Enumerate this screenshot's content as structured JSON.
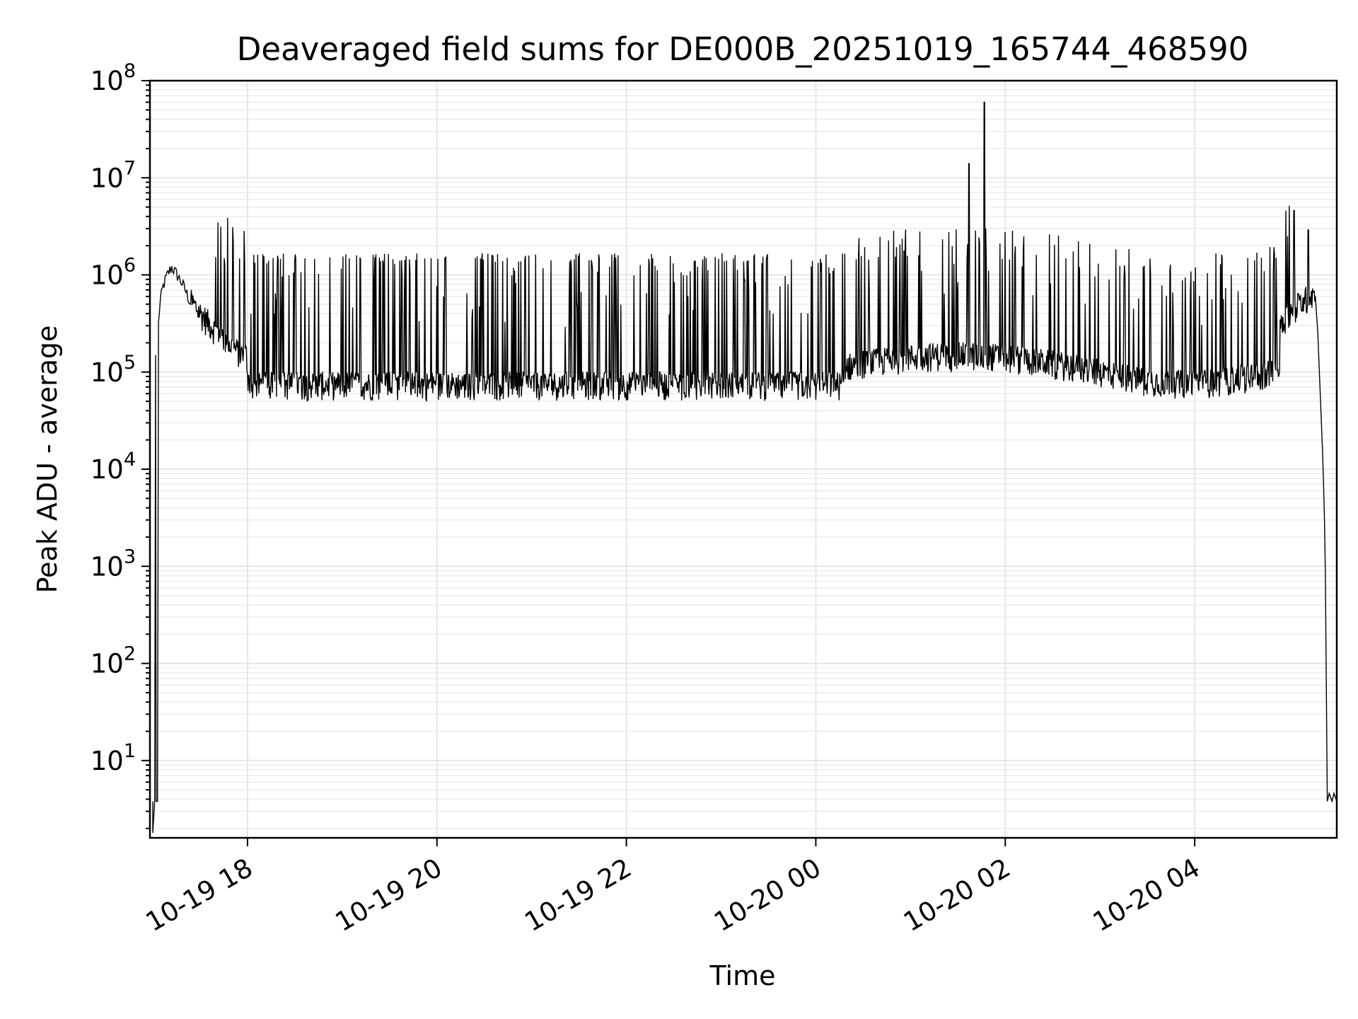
{
  "chart_data": {
    "type": "line",
    "title": "Deaveraged field sums for DE000B_20251019_165744_468590",
    "xlabel": "Time",
    "ylabel": "Peak ADU - average",
    "yscale": "log",
    "ylim": [
      1.6,
      100000000
    ],
    "xlim_hours_since_2025-10-19_00:00": [
      16.97,
      29.5
    ],
    "x_ticks": [
      {
        "label": "10-19 18",
        "hours": 18
      },
      {
        "label": "10-19 20",
        "hours": 20
      },
      {
        "label": "10-19 22",
        "hours": 22
      },
      {
        "label": "10-20 00",
        "hours": 24
      },
      {
        "label": "10-20 02",
        "hours": 26
      },
      {
        "label": "10-20 04",
        "hours": 28
      }
    ],
    "y_ticks": [
      {
        "base": "10",
        "exp": "1",
        "value": 10
      },
      {
        "base": "10",
        "exp": "2",
        "value": 100
      },
      {
        "base": "10",
        "exp": "3",
        "value": 1000
      },
      {
        "base": "10",
        "exp": "4",
        "value": 10000
      },
      {
        "base": "10",
        "exp": "5",
        "value": 100000
      },
      {
        "base": "10",
        "exp": "6",
        "value": 1000000
      },
      {
        "base": "10",
        "exp": "7",
        "value": 10000000
      },
      {
        "base": "10",
        "exp": "8",
        "value": 100000000
      }
    ],
    "grid": true,
    "series": [
      {
        "name": "Peak ADU - average",
        "color": "#000000",
        "description_of_shape": "baseline ~7e4 with frequent spikes to ~1.6e6 between 17:30 and 05:00",
        "key_points": [
          {
            "hours": 17.0,
            "value": 3.8
          },
          {
            "hours": 17.03,
            "value": 150000
          },
          {
            "hours": 17.1,
            "value": 500000
          },
          {
            "hours": 17.18,
            "value": 1200000
          },
          {
            "hours": 17.25,
            "value": 1000000
          },
          {
            "hours": 17.4,
            "value": 450000
          },
          {
            "hours": 17.7,
            "value": 150000
          },
          {
            "hours": 18.0,
            "value": 70000
          },
          {
            "hours": 24.0,
            "value": 90000
          },
          {
            "hours": 25.62,
            "value": 14000000
          },
          {
            "hours": 25.78,
            "value": 60000000
          },
          {
            "hours": 28.0,
            "value": 180000
          },
          {
            "hours": 28.8,
            "value": 500000
          },
          {
            "hours": 29.05,
            "value": 4600000
          },
          {
            "hours": 29.2,
            "value": 2900000
          },
          {
            "hours": 29.3,
            "value": 250000
          },
          {
            "hours": 29.35,
            "value": 15000
          },
          {
            "hours": 29.37,
            "value": 3000
          },
          {
            "hours": 29.38,
            "value": 800
          },
          {
            "hours": 29.4,
            "value": 3.8
          },
          {
            "hours": 29.5,
            "value": 3.8
          }
        ]
      }
    ]
  }
}
